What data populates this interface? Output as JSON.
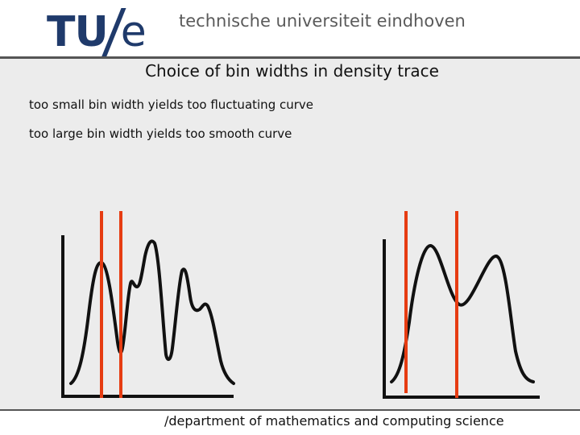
{
  "header": {
    "logo_text": "TU/e",
    "institution": "technische universiteit eindhoven"
  },
  "slide": {
    "title": "Choice of bin widths in density trace",
    "bullets": [
      "too small bin width yields too fluctuating curve",
      "too large bin width yields too smooth curve"
    ]
  },
  "figure": {
    "curve_color": "#111111",
    "marker_color": "#e63c12",
    "axis_color": "#111111"
  },
  "footer": {
    "text": "/department of mathematics and computing science"
  }
}
